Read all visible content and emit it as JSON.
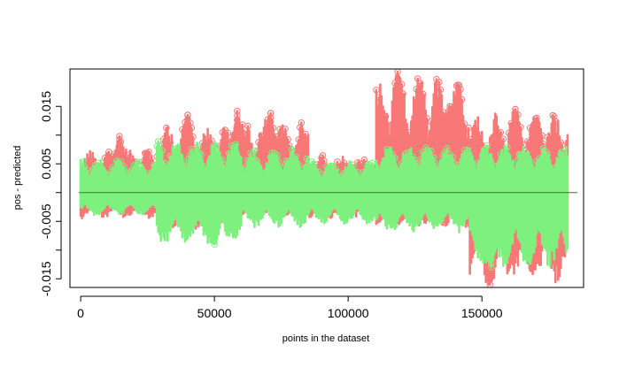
{
  "chart_data": {
    "type": "scatter",
    "title": "",
    "xlabel": "points in the dataset",
    "ylabel": "pos - predicted",
    "xlim": [
      -4000,
      188000
    ],
    "ylim": [
      -0.0165,
      0.0215
    ],
    "x_ticks": [
      0,
      50000,
      100000,
      150000
    ],
    "x_tick_labels": [
      "0",
      "50000",
      "100000",
      "150000"
    ],
    "y_ticks": [
      -0.015,
      -0.01,
      -0.005,
      0,
      0.005,
      0.01,
      0.015
    ],
    "y_tick_labels": [
      "-0.015",
      "",
      "-0.005",
      "",
      "0.005",
      "",
      "0.015"
    ],
    "grid": false,
    "legend": "none",
    "reference_line": {
      "y": 0,
      "color": "#2e7d32"
    },
    "series": [
      {
        "color": "#f87878",
        "segments": [
          {
            "x_start": 0,
            "x_end": 28000,
            "y_min": -0.0045,
            "y_max": 0.0075
          },
          {
            "x_start": 28000,
            "x_end": 60000,
            "y_min": -0.0065,
            "y_max": 0.0115
          },
          {
            "x_start": 60000,
            "x_end": 85000,
            "y_min": -0.004,
            "y_max": 0.0125
          },
          {
            "x_start": 85000,
            "x_end": 110000,
            "y_min": -0.0045,
            "y_max": 0.0065
          },
          {
            "x_start": 110000,
            "x_end": 145000,
            "y_min": -0.006,
            "y_max": 0.0205
          },
          {
            "x_start": 145000,
            "x_end": 182000,
            "y_min": -0.016,
            "y_max": 0.014
          }
        ],
        "peaks": [
          {
            "x": 14500,
            "y": 0.0098
          },
          {
            "x": 40000,
            "y": 0.0135
          },
          {
            "x": 58500,
            "y": 0.0142
          },
          {
            "x": 71000,
            "y": 0.0138
          },
          {
            "x": 118500,
            "y": 0.021
          },
          {
            "x": 127000,
            "y": 0.0185
          },
          {
            "x": 138000,
            "y": 0.015
          },
          {
            "x": 153000,
            "y": -0.016
          },
          {
            "x": 162500,
            "y": 0.0145
          },
          {
            "x": 168500,
            "y": -0.013
          },
          {
            "x": 170500,
            "y": 0.013
          }
        ]
      },
      {
        "color": "#7ef07e",
        "segments": [
          {
            "x_start": 0,
            "x_end": 28000,
            "y_min": -0.004,
            "y_max": 0.006
          },
          {
            "x_start": 28000,
            "x_end": 60000,
            "y_min": -0.009,
            "y_max": 0.009
          },
          {
            "x_start": 60000,
            "x_end": 85000,
            "y_min": -0.006,
            "y_max": 0.0075
          },
          {
            "x_start": 85000,
            "x_end": 110000,
            "y_min": -0.0055,
            "y_max": 0.0055
          },
          {
            "x_start": 110000,
            "x_end": 145000,
            "y_min": -0.007,
            "y_max": 0.0085
          },
          {
            "x_start": 145000,
            "x_end": 182000,
            "y_min": -0.013,
            "y_max": 0.0085
          }
        ],
        "peaks": [
          {
            "x": 50000,
            "y": -0.009
          },
          {
            "x": 153500,
            "y": -0.013
          },
          {
            "x": 167500,
            "y": -0.012
          }
        ]
      }
    ]
  }
}
